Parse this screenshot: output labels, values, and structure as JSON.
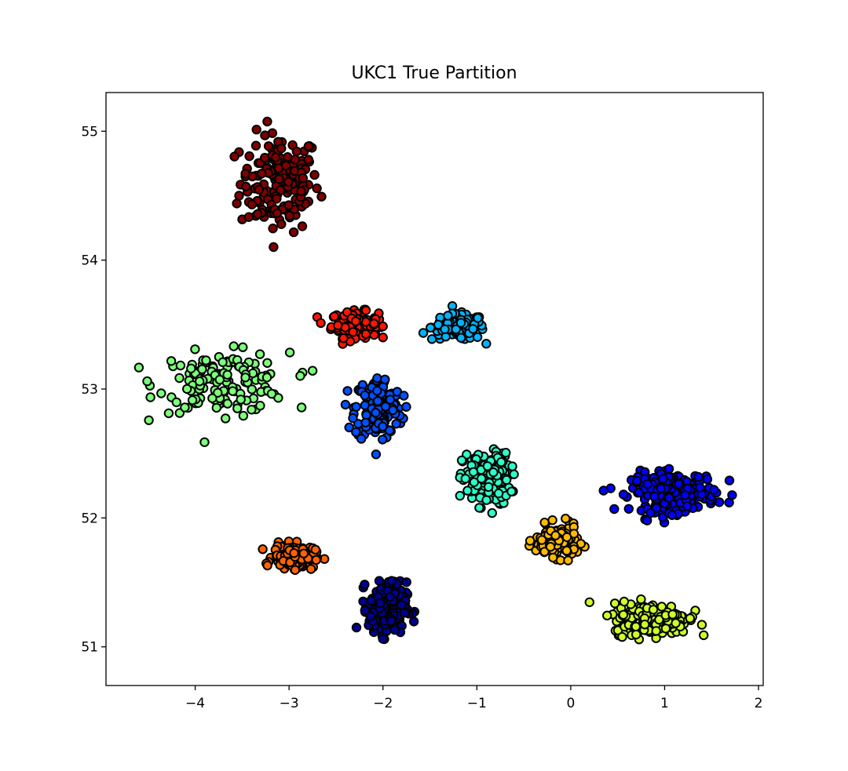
{
  "chart_data": {
    "type": "scatter",
    "title": "UKC1 True Partition",
    "xlabel": "",
    "ylabel": "",
    "xlim": [
      -4.95,
      2.05
    ],
    "ylim": [
      50.7,
      55.3
    ],
    "xticks": [
      -4,
      -3,
      -2,
      -1,
      0,
      1,
      2
    ],
    "yticks": [
      51,
      52,
      53,
      54,
      55
    ],
    "xtick_labels": [
      "−4",
      "−3",
      "−2",
      "−1",
      "0",
      "1",
      "2"
    ],
    "ytick_labels": [
      "51",
      "52",
      "53",
      "54",
      "55"
    ],
    "grid": false,
    "legend": "none",
    "marker_edge_color": "#000000",
    "clusters": [
      {
        "color": "#800000",
        "center": [
          -3.1,
          54.6
        ],
        "spread": [
          0.42,
          0.38
        ],
        "n": 170,
        "extents": {
          "x": [
            -3.6,
            -2.55
          ],
          "y": [
            54.1,
            55.1
          ]
        }
      },
      {
        "color": "#ff1500",
        "center": [
          -2.3,
          53.5
        ],
        "spread": [
          0.25,
          0.1
        ],
        "n": 130,
        "extents": {
          "x": [
            -2.7,
            -2.0
          ],
          "y": [
            53.35,
            53.65
          ]
        }
      },
      {
        "color": "#00b4ff",
        "center": [
          -1.2,
          53.48
        ],
        "spread": [
          0.28,
          0.1
        ],
        "n": 130,
        "extents": {
          "x": [
            -1.6,
            -0.9
          ],
          "y": [
            53.3,
            53.65
          ]
        }
      },
      {
        "color": "#7dff7a",
        "center": [
          -3.7,
          53.05
        ],
        "spread": [
          0.7,
          0.23
        ],
        "n": 150,
        "extents": {
          "x": [
            -4.6,
            -2.75
          ],
          "y": [
            52.55,
            53.4
          ]
        }
      },
      {
        "color": "#0050ff",
        "center": [
          -2.05,
          52.85
        ],
        "spread": [
          0.25,
          0.25
        ],
        "n": 160,
        "extents": {
          "x": [
            -2.4,
            -1.6
          ],
          "y": [
            52.45,
            53.2
          ]
        }
      },
      {
        "color": "#2cffca",
        "center": [
          -0.9,
          52.3
        ],
        "spread": [
          0.25,
          0.2
        ],
        "n": 200,
        "extents": {
          "x": [
            -1.3,
            -0.5
          ],
          "y": [
            52.0,
            52.6
          ]
        }
      },
      {
        "color": "#0000ff",
        "center": [
          1.1,
          52.2
        ],
        "spread": [
          0.45,
          0.15
        ],
        "n": 230,
        "extents": {
          "x": [
            0.35,
            1.75
          ],
          "y": [
            51.95,
            52.5
          ]
        }
      },
      {
        "color": "#ffba00",
        "center": [
          -0.15,
          51.82
        ],
        "spread": [
          0.22,
          0.12
        ],
        "n": 150,
        "extents": {
          "x": [
            -0.7,
            0.2
          ],
          "y": [
            51.6,
            52.05
          ]
        }
      },
      {
        "color": "#ff6300",
        "center": [
          -2.95,
          51.7
        ],
        "spread": [
          0.22,
          0.09
        ],
        "n": 170,
        "extents": {
          "x": [
            -3.3,
            -2.6
          ],
          "y": [
            51.55,
            51.9
          ]
        }
      },
      {
        "color": "#00008f",
        "center": [
          -1.95,
          51.3
        ],
        "spread": [
          0.2,
          0.2
        ],
        "n": 200,
        "extents": {
          "x": [
            -2.3,
            -1.5
          ],
          "y": [
            50.95,
            51.65
          ]
        }
      },
      {
        "color": "#ceff29",
        "center": [
          0.85,
          51.22
        ],
        "spread": [
          0.4,
          0.12
        ],
        "n": 260,
        "extents": {
          "x": [
            0.2,
            1.5
          ],
          "y": [
            50.95,
            51.45
          ]
        }
      }
    ]
  }
}
